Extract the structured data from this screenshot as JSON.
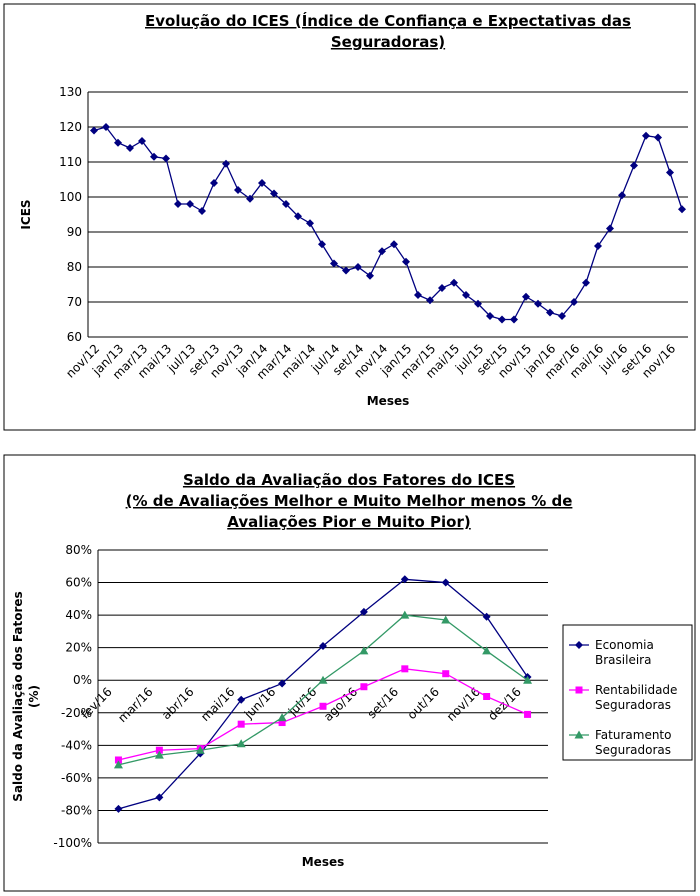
{
  "chart_data": [
    {
      "type": "line",
      "title": [
        "Evolução do ICES (Índice de Confiança e Expectativas das",
        "Seguradoras)"
      ],
      "x_label": "Meses",
      "y_label": [
        "ICES"
      ],
      "categories": [
        "nov/12",
        null,
        "jan/13",
        null,
        "mar/13",
        null,
        "mai/13",
        null,
        "jul/13",
        null,
        "set/13",
        null,
        "nov/13",
        null,
        "jan/14",
        null,
        "mar/14",
        null,
        "mai/14",
        null,
        "jul/14",
        null,
        "set/14",
        null,
        "nov/14",
        null,
        "jan/15",
        null,
        "mar/15",
        null,
        "mai/15",
        null,
        "jul/15",
        null,
        "set/15",
        null,
        "nov/15",
        null,
        "jan/16",
        null,
        "mar/16",
        null,
        "mai/16",
        null,
        "jul/16",
        null,
        "set/16",
        null,
        "nov/16",
        null
      ],
      "series": [
        {
          "name": "ICES",
          "color": "#000080",
          "marker": "diamond",
          "values": [
            119,
            120,
            115.5,
            114,
            116,
            111.5,
            111,
            98,
            98,
            96,
            104,
            109.5,
            102,
            99.5,
            104,
            101,
            98,
            94.5,
            92.5,
            86.5,
            81,
            79,
            80,
            77.5,
            84.5,
            86.5,
            81.5,
            72,
            70.5,
            74,
            75.5,
            72,
            69.5,
            66,
            65,
            65,
            71.5,
            69.5,
            67,
            66,
            70,
            75.5,
            86,
            91,
            100.5,
            109,
            117.5,
            117,
            107,
            96.5
          ]
        }
      ],
      "ylim": [
        60,
        130
      ],
      "yticks": [
        60,
        70,
        80,
        90,
        100,
        110,
        120,
        130
      ],
      "grid": true,
      "legend": false
    },
    {
      "type": "line",
      "title": [
        "Saldo da Avaliação dos Fatores do ICES",
        "(% de Avaliações Melhor e Muito Melhor menos % de",
        "Avaliações Pior e Muito Pior)"
      ],
      "x_label": "Meses",
      "y_label": [
        "Saldo da Avaliação dos Fatores",
        "(%)"
      ],
      "categories": [
        "fev/16",
        "mar/16",
        "abr/16",
        "mai/16",
        "jun/16",
        "jul/16",
        "ago/16",
        "set/16",
        "out/16",
        "nov/16",
        "dez/16"
      ],
      "series": [
        {
          "name": "Economia Brasileira",
          "color": "#000080",
          "marker": "diamond",
          "values": [
            -79,
            -72,
            -45,
            -12,
            -2,
            21,
            42,
            62,
            60,
            39,
            2
          ]
        },
        {
          "name": "Rentabilidade Seguradoras",
          "color": "#ff00ff",
          "marker": "square",
          "values": [
            -49,
            -43,
            -42,
            -27,
            -26,
            -16,
            -4,
            7,
            4,
            -10,
            -21
          ]
        },
        {
          "name": "Faturamento Seguradoras",
          "color": "#339966",
          "marker": "triangle",
          "values": [
            -52,
            -46,
            -43,
            -39,
            -23,
            0,
            18,
            40,
            37,
            18,
            0
          ]
        }
      ],
      "ylim": [
        -100,
        80
      ],
      "yticks": [
        {
          "value": -100,
          "label": "-100%"
        },
        {
          "value": -80,
          "label": "-80%"
        },
        {
          "value": -60,
          "label": "-60%"
        },
        {
          "value": -40,
          "label": "-40%"
        },
        {
          "value": -20,
          "label": "-20%"
        },
        {
          "value": 0,
          "label": "0%"
        },
        {
          "value": 20,
          "label": "20%"
        },
        {
          "value": 40,
          "label": "40%"
        },
        {
          "value": 60,
          "label": "60%"
        },
        {
          "value": 80,
          "label": "80%"
        }
      ],
      "grid": true,
      "legend": "right"
    }
  ]
}
